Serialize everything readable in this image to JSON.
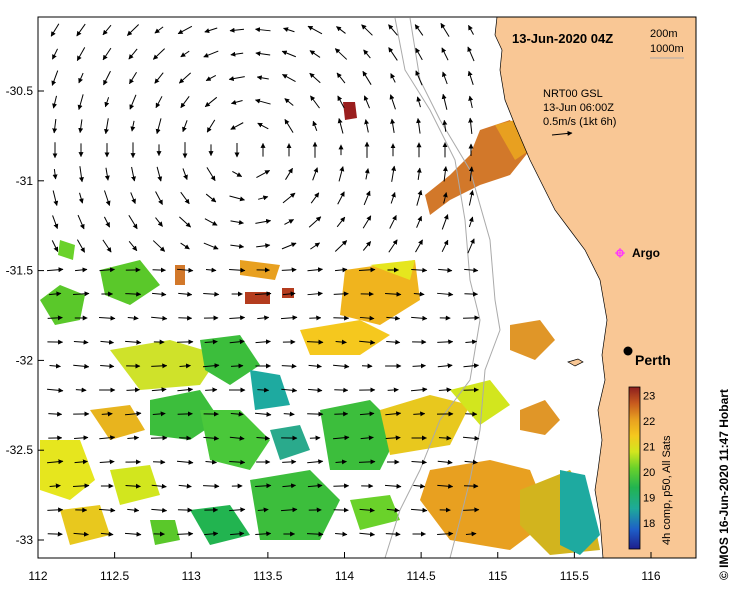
{
  "map": {
    "timestamp": "13-Jun-2020 04Z",
    "depth_legend": [
      "200m",
      "1000m"
    ],
    "current_legend": [
      "NRT00 GSL",
      "13-Jun 06:00Z",
      "0.5m/s (1kt 6h)"
    ],
    "argo_label": "Argo",
    "city_label": "Perth",
    "credit": "© IMOS 16-Jun-2020 11:47 Hobart",
    "colorbar_title": "4h comp, p50, All Sats",
    "colorbar_ticks": [
      "18",
      "19",
      "20",
      "21",
      "22",
      "23"
    ],
    "x_ticks": [
      "112",
      "112.5",
      "113",
      "113.5",
      "114",
      "114.5",
      "115",
      "115.5",
      "116"
    ],
    "y_ticks": [
      "-30.5",
      "-31",
      "-31.5",
      "-32",
      "-32.5",
      "-33"
    ],
    "colors": {
      "land": "#f9c795",
      "isobath": "#aaaaaa",
      "argo": "#ff33ff"
    }
  }
}
